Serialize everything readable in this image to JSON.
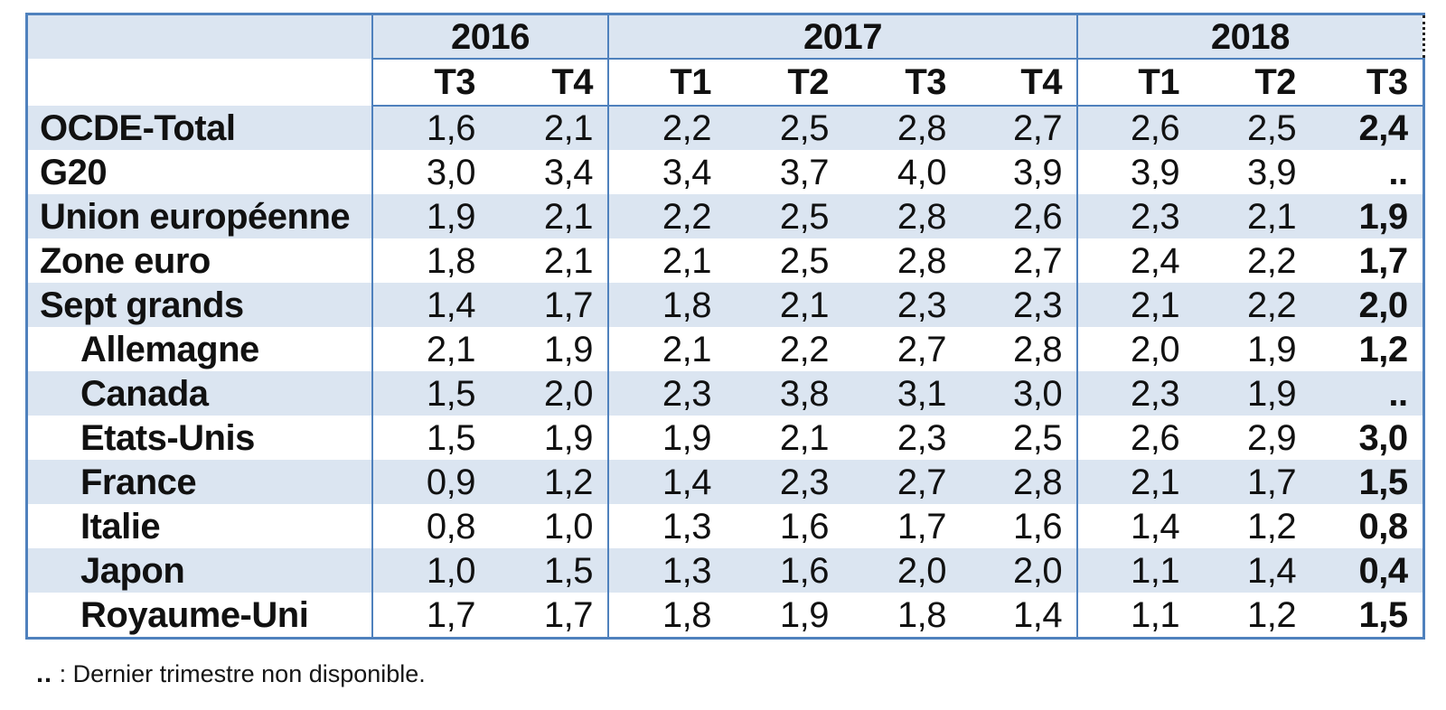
{
  "table": {
    "year_groups": [
      {
        "label": "2016",
        "quarters": [
          "T3",
          "T4"
        ]
      },
      {
        "label": "2017",
        "quarters": [
          "T1",
          "T2",
          "T3",
          "T4"
        ]
      },
      {
        "label": "2018",
        "quarters": [
          "T1",
          "T2",
          "T3"
        ]
      }
    ],
    "rows": [
      {
        "label": "OCDE-Total",
        "indent": false,
        "values": [
          "1,6",
          "2,1",
          "2,2",
          "2,5",
          "2,8",
          "2,7",
          "2,6",
          "2,5",
          "2,4"
        ]
      },
      {
        "label": "G20",
        "indent": false,
        "values": [
          "3,0",
          "3,4",
          "3,4",
          "3,7",
          "4,0",
          "3,9",
          "3,9",
          "3,9",
          ".."
        ]
      },
      {
        "label": "Union européenne",
        "indent": false,
        "values": [
          "1,9",
          "2,1",
          "2,2",
          "2,5",
          "2,8",
          "2,6",
          "2,3",
          "2,1",
          "1,9"
        ]
      },
      {
        "label": "Zone euro",
        "indent": false,
        "values": [
          "1,8",
          "2,1",
          "2,1",
          "2,5",
          "2,8",
          "2,7",
          "2,4",
          "2,2",
          "1,7"
        ]
      },
      {
        "label": "Sept grands",
        "indent": false,
        "values": [
          "1,4",
          "1,7",
          "1,8",
          "2,1",
          "2,3",
          "2,3",
          "2,1",
          "2,2",
          "2,0"
        ]
      },
      {
        "label": "Allemagne",
        "indent": true,
        "values": [
          "2,1",
          "1,9",
          "2,1",
          "2,2",
          "2,7",
          "2,8",
          "2,0",
          "1,9",
          "1,2"
        ]
      },
      {
        "label": "Canada",
        "indent": true,
        "values": [
          "1,5",
          "2,0",
          "2,3",
          "3,8",
          "3,1",
          "3,0",
          "2,3",
          "1,9",
          ".."
        ]
      },
      {
        "label": "Etats-Unis",
        "indent": true,
        "values": [
          "1,5",
          "1,9",
          "1,9",
          "2,1",
          "2,3",
          "2,5",
          "2,6",
          "2,9",
          "3,0"
        ]
      },
      {
        "label": "France",
        "indent": true,
        "values": [
          "0,9",
          "1,2",
          "1,4",
          "2,3",
          "2,7",
          "2,8",
          "2,1",
          "1,7",
          "1,5"
        ]
      },
      {
        "label": "Italie",
        "indent": true,
        "values": [
          "0,8",
          "1,0",
          "1,3",
          "1,6",
          "1,7",
          "1,6",
          "1,4",
          "1,2",
          "0,8"
        ]
      },
      {
        "label": "Japon",
        "indent": true,
        "values": [
          "1,0",
          "1,5",
          "1,3",
          "1,6",
          "2,0",
          "2,0",
          "1,1",
          "1,4",
          "0,4"
        ]
      },
      {
        "label": "Royaume-Uni",
        "indent": true,
        "values": [
          "1,7",
          "1,7",
          "1,8",
          "1,9",
          "1,8",
          "1,4",
          "1,1",
          "1,2",
          "1,5"
        ]
      }
    ]
  },
  "footnote": {
    "symbol": "..",
    "text": " : Dernier trimestre non disponible."
  },
  "colors": {
    "border_blue": "#4f81bd",
    "stripe_blue": "#dbe5f1"
  }
}
